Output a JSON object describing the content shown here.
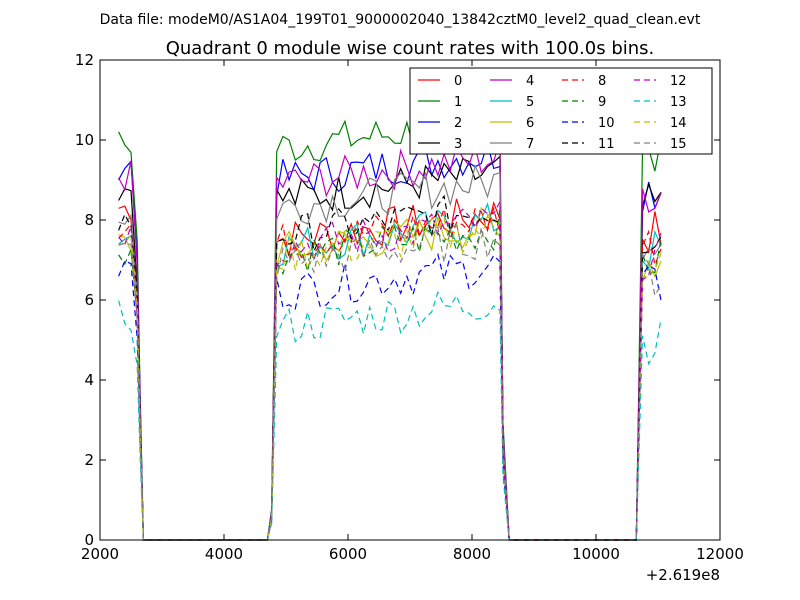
{
  "figure": {
    "suptitle": "Data file: modeM0/AS1A04_199T01_9000002040_13842cztM0_level2_quad_clean.evt",
    "title": "Quadrant 0 module wise count rates with 100.0s bins.",
    "x_offset_label": "+2.619e8"
  },
  "chart_data": {
    "type": "line",
    "title": "Quadrant 0 module wise count rates with 100.0s bins.",
    "xlabel": "",
    "ylabel": "",
    "xlim": [
      2000,
      12000
    ],
    "ylim": [
      0,
      12
    ],
    "x_offset": 261900000,
    "xticks": [
      2000,
      4000,
      6000,
      8000,
      10000,
      12000
    ],
    "yticks": [
      0,
      2,
      4,
      6,
      8,
      10,
      12
    ],
    "xtick_labels": [
      "2000",
      "4000",
      "6000",
      "8000",
      "10000",
      "12000"
    ],
    "ytick_labels": [
      "0",
      "2",
      "4",
      "6",
      "8",
      "10",
      "12"
    ],
    "legend": {
      "position": "top-right",
      "columns": 4
    },
    "grid": false,
    "segments": [
      [
        2300,
        2700
      ],
      [
        4800,
        8600
      ],
      [
        10700,
        11100
      ]
    ],
    "series": [
      {
        "name": "0",
        "color": "#ff0000",
        "style": "solid",
        "levels": [
          8.3,
          7.5,
          7.7
        ]
      },
      {
        "name": "1",
        "color": "#008000",
        "style": "solid",
        "levels": [
          9.9,
          9.8,
          9.5
        ]
      },
      {
        "name": "2",
        "color": "#0000ff",
        "style": "solid",
        "levels": [
          9.4,
          9.0,
          8.8
        ]
      },
      {
        "name": "3",
        "color": "#000000",
        "style": "solid",
        "levels": [
          8.8,
          8.5,
          8.3
        ]
      },
      {
        "name": "4",
        "color": "#bf00bf",
        "style": "solid",
        "levels": [
          9.1,
          8.9,
          8.7
        ]
      },
      {
        "name": "5",
        "color": "#00bfbf",
        "style": "solid",
        "levels": [
          7.6,
          7.3,
          7.2
        ]
      },
      {
        "name": "6",
        "color": "#bfbf00",
        "style": "solid",
        "levels": [
          7.4,
          7.2,
          7.0
        ]
      },
      {
        "name": "7",
        "color": "#808080",
        "style": "solid",
        "levels": [
          8.1,
          8.3,
          7.6
        ]
      },
      {
        "name": "8",
        "color": "#ff0000",
        "style": "dashed",
        "levels": [
          7.9,
          7.4,
          7.4
        ]
      },
      {
        "name": "9",
        "color": "#008000",
        "style": "dashed",
        "levels": [
          7.3,
          7.1,
          7.0
        ]
      },
      {
        "name": "10",
        "color": "#0000ff",
        "style": "dashed",
        "levels": [
          6.8,
          6.2,
          6.3
        ]
      },
      {
        "name": "11",
        "color": "#000000",
        "style": "dashed",
        "levels": [
          8.0,
          7.6,
          7.6
        ]
      },
      {
        "name": "12",
        "color": "#bf00bf",
        "style": "dashed",
        "levels": [
          7.7,
          7.3,
          7.1
        ]
      },
      {
        "name": "13",
        "color": "#00bfbf",
        "style": "dashed",
        "levels": [
          5.6,
          5.3,
          5.0
        ]
      },
      {
        "name": "14",
        "color": "#bfbf00",
        "style": "dashed",
        "levels": [
          7.5,
          7.1,
          7.0
        ]
      },
      {
        "name": "15",
        "color": "#808080",
        "style": "dashed",
        "levels": [
          7.2,
          6.9,
          6.6
        ]
      }
    ]
  }
}
